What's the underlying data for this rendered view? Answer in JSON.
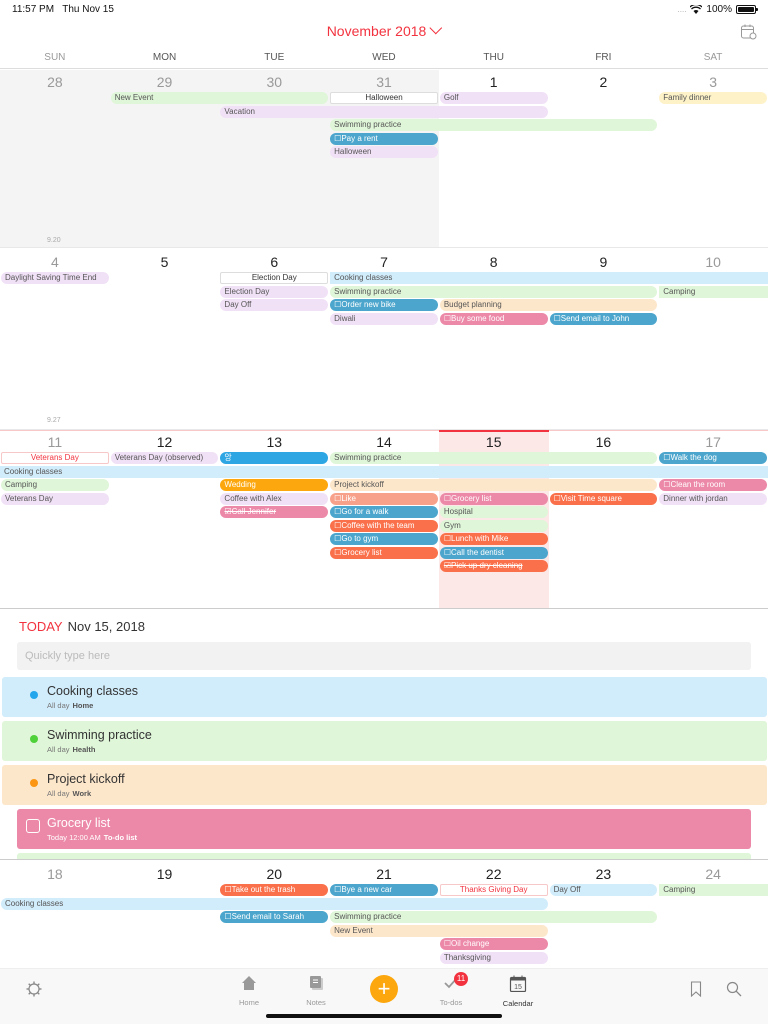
{
  "status_bar": {
    "time": "11:57 PM",
    "date": "Thu Nov 15",
    "battery": "100%"
  },
  "header": {
    "month_title": "November 2018",
    "settings_icon": "calendar-settings-icon"
  },
  "weekdays": [
    "SUN",
    "MON",
    "TUE",
    "WED",
    "THU",
    "FRI",
    "SAT"
  ],
  "weeks": [
    {
      "days": [
        "28",
        "29",
        "30",
        "31",
        "1",
        "2",
        "3"
      ],
      "note": "9.20",
      "events": [
        {
          "label": "New Event",
          "start": 1,
          "span": 2,
          "row": 0,
          "style": "c-green"
        },
        {
          "label": "Halloween",
          "start": 3,
          "span": 1,
          "row": 0,
          "style": "holiday"
        },
        {
          "label": "Golf",
          "start": 4,
          "span": 1,
          "row": 0,
          "style": "c-purple"
        },
        {
          "label": "Family dinner",
          "start": 6,
          "span": 1,
          "row": 0,
          "style": "c-yellow"
        },
        {
          "label": "Vacation",
          "start": 2,
          "span": 3,
          "row": 1,
          "style": "c-purple"
        },
        {
          "label": "Swimming practice",
          "start": 3,
          "span": 3,
          "row": 2,
          "style": "c-green"
        },
        {
          "label": "☐Pay a rent",
          "start": 3,
          "span": 1,
          "row": 3,
          "style": "c-teal todo"
        },
        {
          "label": "Halloween",
          "start": 3,
          "span": 1,
          "row": 4,
          "style": "c-purple"
        }
      ]
    },
    {
      "days": [
        "4",
        "5",
        "6",
        "7",
        "8",
        "9",
        "10"
      ],
      "note": "9.27",
      "events": [
        {
          "label": "Daylight Saving Time End",
          "start": 0,
          "span": 1,
          "row": 0,
          "style": "c-purple"
        },
        {
          "label": "Election Day",
          "start": 2,
          "span": 1,
          "row": 0,
          "style": "holiday"
        },
        {
          "label": "Cooking classes",
          "start": 3,
          "span": 4,
          "row": 0,
          "style": "c-blue-l flat"
        },
        {
          "label": "Election Day",
          "start": 2,
          "span": 1,
          "row": 1,
          "style": "c-purple"
        },
        {
          "label": "Swimming practice",
          "start": 3,
          "span": 3,
          "row": 1,
          "style": "c-green"
        },
        {
          "label": "Camping",
          "start": 6,
          "span": 1,
          "row": 1,
          "style": "c-green flat"
        },
        {
          "label": "Day Off",
          "start": 2,
          "span": 1,
          "row": 2,
          "style": "c-purple"
        },
        {
          "label": "☐Order new bike",
          "start": 3,
          "span": 1,
          "row": 2,
          "style": "c-teal todo"
        },
        {
          "label": "Budget planning",
          "start": 4,
          "span": 2,
          "row": 2,
          "style": "c-peach"
        },
        {
          "label": "Diwali",
          "start": 3,
          "span": 1,
          "row": 3,
          "style": "c-purple"
        },
        {
          "label": "☐Buy some food",
          "start": 4,
          "span": 1,
          "row": 3,
          "style": "c-pink todo"
        },
        {
          "label": "☐Send email to John",
          "start": 5,
          "span": 1,
          "row": 3,
          "style": "c-teal todo"
        }
      ]
    },
    {
      "days": [
        "11",
        "12",
        "13",
        "14",
        "15",
        "16",
        "17"
      ],
      "events": [
        {
          "label": "Veterans Day",
          "start": 0,
          "span": 1,
          "row": 0,
          "style": "holiday-red"
        },
        {
          "label": "Veterans Day (observed)",
          "start": 1,
          "span": 1,
          "row": 0,
          "style": "c-purple"
        },
        {
          "label": "앙",
          "start": 2,
          "span": 1,
          "row": 0,
          "style": "c-sky todo"
        },
        {
          "label": "Swimming practice",
          "start": 3,
          "span": 3,
          "row": 0,
          "style": "c-green"
        },
        {
          "label": "☐Walk the dog",
          "start": 6,
          "span": 1,
          "row": 0,
          "style": "c-teal todo"
        },
        {
          "label": "Cooking classes",
          "start": 0,
          "span": 7,
          "row": 1,
          "style": "c-blue-l flat"
        },
        {
          "label": "Camping",
          "start": 0,
          "span": 1,
          "row": 2,
          "style": "c-green"
        },
        {
          "label": "Wedding",
          "start": 2,
          "span": 1,
          "row": 2,
          "style": "c-amber todo"
        },
        {
          "label": "Project kickoff",
          "start": 3,
          "span": 3,
          "row": 2,
          "style": "c-peach"
        },
        {
          "label": "☐Clean the room",
          "start": 6,
          "span": 1,
          "row": 2,
          "style": "c-pink todo"
        },
        {
          "label": "Veterans Day",
          "start": 0,
          "span": 1,
          "row": 3,
          "style": "c-purple"
        },
        {
          "label": "Coffee with Alex",
          "start": 2,
          "span": 1,
          "row": 3,
          "style": "c-purple"
        },
        {
          "label": "☐Like",
          "start": 3,
          "span": 1,
          "row": 3,
          "style": "c-salmon todo"
        },
        {
          "label": "☐Grocery list",
          "start": 4,
          "span": 1,
          "row": 3,
          "style": "c-pink todo"
        },
        {
          "label": "☐Visit Time square",
          "start": 5,
          "span": 1,
          "row": 3,
          "style": "c-orange todo"
        },
        {
          "label": "Dinner with jordan",
          "start": 6,
          "span": 1,
          "row": 3,
          "style": "c-purple"
        },
        {
          "label": "☑Call Jennifer",
          "start": 2,
          "span": 1,
          "row": 4,
          "style": "c-pink done"
        },
        {
          "label": "☐Go for a walk",
          "start": 3,
          "span": 1,
          "row": 4,
          "style": "c-teal todo"
        },
        {
          "label": "Hospital",
          "start": 4,
          "span": 1,
          "row": 4,
          "style": "c-green"
        },
        {
          "label": "☐Coffee with the team",
          "start": 3,
          "span": 1,
          "row": 5,
          "style": "c-orange todo"
        },
        {
          "label": "Gym",
          "start": 4,
          "span": 1,
          "row": 5,
          "style": "c-green"
        },
        {
          "label": "☐Go to gym",
          "start": 3,
          "span": 1,
          "row": 6,
          "style": "c-teal todo"
        },
        {
          "label": "☐Lunch with Mike",
          "start": 4,
          "span": 1,
          "row": 6,
          "style": "c-orange todo"
        },
        {
          "label": "☐Grocery list",
          "start": 3,
          "span": 1,
          "row": 7,
          "style": "c-orange todo"
        },
        {
          "label": "☐Call the dentist",
          "start": 4,
          "span": 1,
          "row": 7,
          "style": "c-teal todo"
        },
        {
          "label": "☑Pick up dry cleaning",
          "start": 4,
          "span": 1,
          "row": 8,
          "style": "c-orange done"
        }
      ]
    },
    {
      "days": [
        "18",
        "19",
        "20",
        "21",
        "22",
        "23",
        "24"
      ],
      "events": [
        {
          "label": "☐Take out the trash",
          "start": 2,
          "span": 1,
          "row": 0,
          "style": "c-orange todo"
        },
        {
          "label": "☐Bye a new car",
          "start": 3,
          "span": 1,
          "row": 0,
          "style": "c-teal todo"
        },
        {
          "label": "Thanks Giving Day",
          "start": 4,
          "span": 1,
          "row": 0,
          "style": "holiday-red"
        },
        {
          "label": "Day Off",
          "start": 5,
          "span": 1,
          "row": 0,
          "style": "c-blue-l"
        },
        {
          "label": "Camping",
          "start": 6,
          "span": 1,
          "row": 0,
          "style": "c-green flat"
        },
        {
          "label": "Cooking classes",
          "start": 0,
          "span": 5,
          "row": 1,
          "style": "c-blue-l"
        },
        {
          "label": "☐Send email to Sarah",
          "start": 2,
          "span": 1,
          "row": 2,
          "style": "c-teal todo"
        },
        {
          "label": "Swimming practice",
          "start": 3,
          "span": 3,
          "row": 2,
          "style": "c-green"
        },
        {
          "label": "New Event",
          "start": 3,
          "span": 2,
          "row": 3,
          "style": "c-peach"
        },
        {
          "label": "☐Oil change",
          "start": 4,
          "span": 1,
          "row": 4,
          "style": "c-pink todo"
        },
        {
          "label": "Thanksgiving",
          "start": 4,
          "span": 1,
          "row": 5,
          "style": "c-purple"
        }
      ]
    }
  ],
  "today_panel": {
    "label": "TODAY",
    "date": "Nov 15, 2018",
    "quick_input_placeholder": "Quickly type here",
    "items": [
      {
        "title": "Cooking classes",
        "time": "All day",
        "calendar": "Home",
        "bg": "#d1ecfb",
        "dot": "#23a6ec"
      },
      {
        "title": "Swimming practice",
        "time": "All day",
        "calendar": "Health",
        "bg": "#dff6d8",
        "dot": "#4fd13a"
      },
      {
        "title": "Project kickoff",
        "time": "All day",
        "calendar": "Work",
        "bg": "#fde7cb",
        "dot": "#fb9512"
      },
      {
        "title": "Grocery list",
        "time": "Today 12:00 AM",
        "calendar": "To-do list",
        "bg": "#ec88a8",
        "todo": true
      }
    ]
  },
  "tab_bar": {
    "tabs": [
      {
        "label": "Home",
        "icon": "home-icon"
      },
      {
        "label": "Notes",
        "icon": "notes-icon"
      },
      {
        "label": "To-dos",
        "icon": "checkmark-icon",
        "badge": "11"
      },
      {
        "label": "Calendar",
        "icon": "calendar-icon",
        "active": true,
        "icon_text": "15"
      }
    ],
    "add_label": "+"
  },
  "colors": {
    "accent": "#f2333f",
    "add_button": "#fca70e",
    "today_column": "#fde8e8"
  }
}
